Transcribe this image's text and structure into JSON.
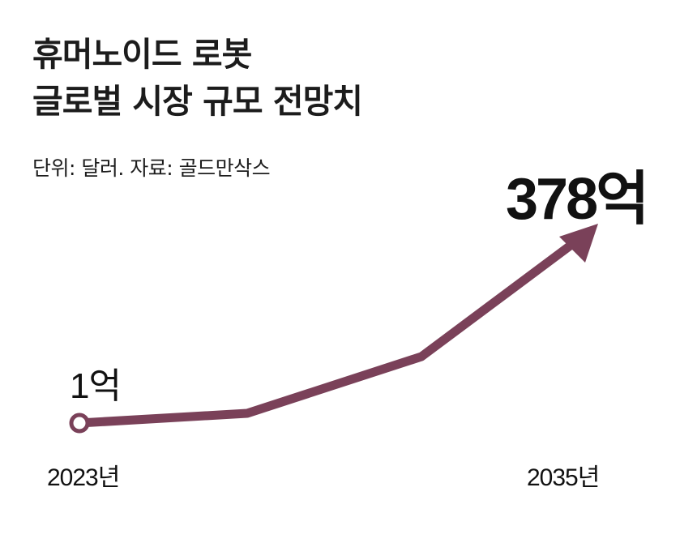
{
  "title_lines": [
    "휴머노이드 로봇",
    "글로벌 시장 규모 전망치"
  ],
  "subtitle": "단위: 달러. 자료: 골드만삭스",
  "chart_data": {
    "type": "line",
    "title": "휴머노이드 로봇 글로벌 시장 규모 전망치",
    "unit": "달러",
    "source": "골드만삭스",
    "x_ticks": [
      "2023년",
      "2035년"
    ],
    "data_labels": {
      "start": "1억",
      "end": "378억"
    },
    "start": {
      "x": "2023년",
      "value": 1
    },
    "end": {
      "x": "2035년",
      "value": 378
    },
    "line_color": "#7a4159",
    "grid": false,
    "legend": "none"
  }
}
